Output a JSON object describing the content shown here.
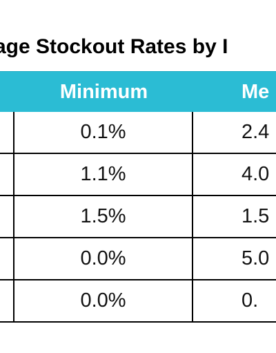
{
  "title": "age Stockout Rates by I",
  "table": {
    "headers": [
      "",
      "Minimum",
      "Me"
    ],
    "rows": [
      [
        "",
        "0.1%",
        "2.4"
      ],
      [
        "",
        "1.1%",
        "4.0"
      ],
      [
        "",
        "1.5%",
        "1.5"
      ],
      [
        "",
        "0.0%",
        "5.0"
      ],
      [
        "",
        "0.0%",
        "0."
      ]
    ]
  },
  "colors": {
    "header_bg": "#2bbcd4",
    "header_text": "#ffffff",
    "grid": "#000000"
  }
}
